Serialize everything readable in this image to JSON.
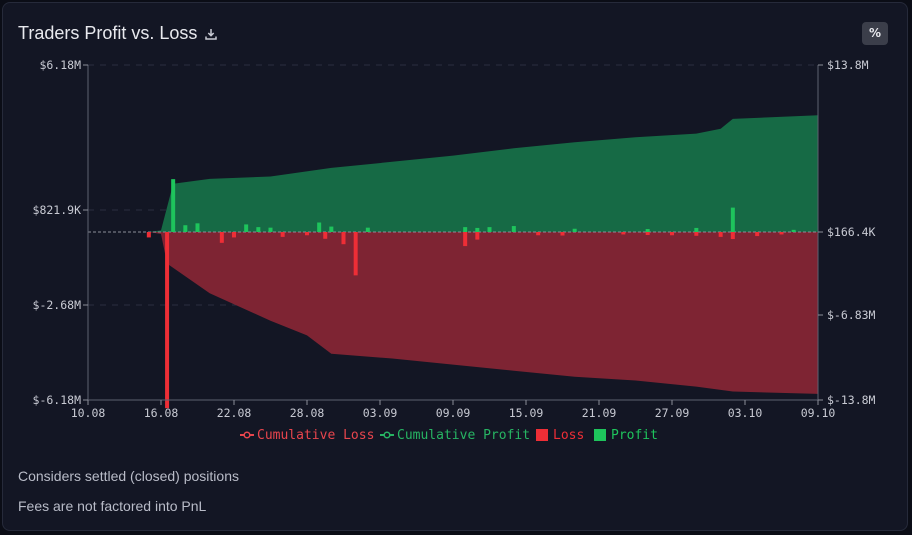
{
  "header": {
    "title": "Traders Profit vs. Loss",
    "percent_label": "%"
  },
  "notes": [
    "Considers settled (closed) positions",
    "Fees are not factored into PnL"
  ],
  "colors": {
    "profit": "#1ec45c",
    "loss": "#ee2e36",
    "cum_profit_fill": "#166a45",
    "cum_loss_fill": "#7e2433",
    "cum_loss_legend": "#e8454d",
    "cum_profit_legend": "#27b463"
  },
  "chart_data": {
    "type": "bar",
    "title": "Traders Profit vs. Loss",
    "x_tick_labels": [
      "10.08",
      "16.08",
      "22.08",
      "28.08",
      "03.09",
      "09.09",
      "15.09",
      "21.09",
      "27.09",
      "03.10",
      "09.10"
    ],
    "left_axis": {
      "ylim": [
        -6180000,
        6180000
      ],
      "tick_values": [
        6180000,
        821900,
        -2680000,
        -6180000
      ],
      "tick_labels": [
        "$6.18M",
        "$821.9K",
        "$-2.68M",
        "$-6.18M"
      ]
    },
    "right_axis": {
      "ylim": [
        -13800000,
        13800000
      ],
      "tick_values": [
        13800000,
        166400,
        -6830000,
        -13800000
      ],
      "tick_labels": [
        "$13.8M",
        "$166.4K",
        "$-6.83M",
        "$-13.8M"
      ]
    },
    "x_domain_days": [
      0,
      60
    ],
    "legend": [
      {
        "name": "Cumulative Loss",
        "kind": "line-marker"
      },
      {
        "name": "Cumulative Profit",
        "kind": "line-marker"
      },
      {
        "name": "Loss",
        "kind": "square"
      },
      {
        "name": "Profit",
        "kind": "square"
      }
    ],
    "series": [
      {
        "name": "Cumulative Profit",
        "axis": "right",
        "kind": "area",
        "x": [
          0,
          5,
          6,
          7,
          10,
          15,
          20,
          25,
          30,
          35,
          40,
          45,
          50,
          52,
          53,
          60
        ],
        "values": [
          166400,
          166400,
          300000,
          4100000,
          4500000,
          4700000,
          5400000,
          5900000,
          6400000,
          7000000,
          7500000,
          7900000,
          8200000,
          8600000,
          9400000,
          9700000
        ]
      },
      {
        "name": "Cumulative Loss",
        "axis": "right",
        "kind": "area",
        "x": [
          0,
          5,
          6,
          6.5,
          10,
          15,
          18,
          20,
          25,
          30,
          35,
          40,
          45,
          50,
          53,
          60
        ],
        "values": [
          166400,
          166400,
          0,
          -2500000,
          -5000000,
          -7300000,
          -8500000,
          -10000000,
          -10400000,
          -10900000,
          -11400000,
          -11900000,
          -12200000,
          -12700000,
          -13100000,
          -13300000
        ]
      },
      {
        "name": "Profit",
        "axis": "left",
        "kind": "bar",
        "x": [
          7,
          8,
          9,
          13,
          14,
          15,
          19,
          20,
          23,
          31,
          32,
          33,
          35,
          40,
          46,
          50,
          53,
          58
        ],
        "values": [
          1950000,
          250000,
          320000,
          280000,
          180000,
          160000,
          350000,
          200000,
          160000,
          180000,
          150000,
          180000,
          220000,
          120000,
          110000,
          150000,
          900000,
          80000
        ]
      },
      {
        "name": "Loss",
        "axis": "left",
        "kind": "bar",
        "x": [
          5,
          6.5,
          11,
          12,
          16,
          18,
          19.5,
          21,
          22,
          31,
          32,
          37,
          39,
          44,
          46,
          48,
          50,
          52,
          53,
          55,
          57
        ],
        "values": [
          -200000,
          -6500000,
          -400000,
          -200000,
          -180000,
          -120000,
          -250000,
          -450000,
          -1600000,
          -520000,
          -280000,
          -120000,
          -130000,
          -90000,
          -110000,
          -120000,
          -140000,
          -180000,
          -260000,
          -150000,
          -90000
        ]
      }
    ]
  }
}
